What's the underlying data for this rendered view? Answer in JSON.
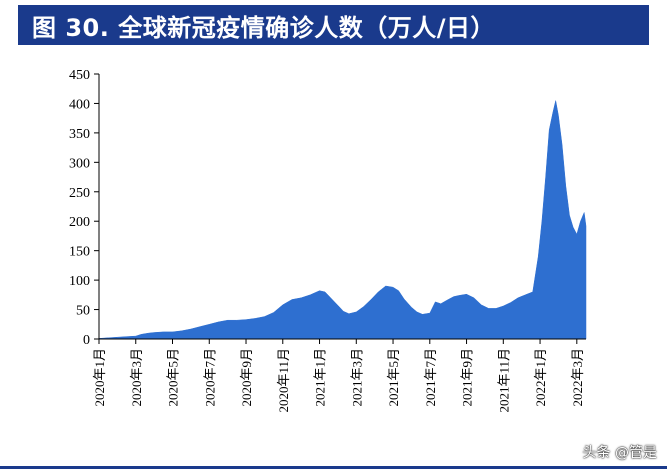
{
  "header": {
    "title": "图 30. 全球新冠疫情确诊人数（万人/日）"
  },
  "watermark": "头条 @管是",
  "colors": {
    "series": "#2e6fd0",
    "header_bg": "#1a3a8c",
    "axis": "#000000"
  },
  "chart_data": {
    "type": "area",
    "title": "全球新冠疫情确诊人数（万人/日）",
    "xlabel": "",
    "ylabel": "",
    "ylim": [
      0,
      450
    ],
    "yticks": [
      0,
      50,
      100,
      150,
      200,
      250,
      300,
      350,
      400,
      450
    ],
    "xlim_month": [
      0,
      26.5
    ],
    "x_tick_labels": [
      {
        "m": 0,
        "label": "2020年1月"
      },
      {
        "m": 2,
        "label": "2020年3月"
      },
      {
        "m": 4,
        "label": "2020年5月"
      },
      {
        "m": 6,
        "label": "2020年7月"
      },
      {
        "m": 8,
        "label": "2020年9月"
      },
      {
        "m": 10,
        "label": "2020年11月"
      },
      {
        "m": 12,
        "label": "2021年1月"
      },
      {
        "m": 14,
        "label": "2021年3月"
      },
      {
        "m": 16,
        "label": "2021年5月"
      },
      {
        "m": 18,
        "label": "2021年7月"
      },
      {
        "m": 20,
        "label": "2021年9月"
      },
      {
        "m": 22,
        "label": "2021年11月"
      },
      {
        "m": 24,
        "label": "2022年1月"
      },
      {
        "m": 26,
        "label": "2022年3月"
      }
    ],
    "series": [
      {
        "values": [
          [
            0.0,
            1
          ],
          [
            0.5,
            2
          ],
          [
            1.0,
            3
          ],
          [
            1.5,
            4
          ],
          [
            2.0,
            5
          ],
          [
            2.3,
            8
          ],
          [
            2.7,
            10
          ],
          [
            3.0,
            11
          ],
          [
            3.5,
            12
          ],
          [
            4.0,
            12
          ],
          [
            4.5,
            14
          ],
          [
            5.0,
            17
          ],
          [
            5.5,
            21
          ],
          [
            6.0,
            25
          ],
          [
            6.5,
            29
          ],
          [
            7.0,
            32
          ],
          [
            7.5,
            32
          ],
          [
            8.0,
            33
          ],
          [
            8.5,
            35
          ],
          [
            9.0,
            38
          ],
          [
            9.5,
            45
          ],
          [
            10.0,
            58
          ],
          [
            10.5,
            67
          ],
          [
            11.0,
            70
          ],
          [
            11.5,
            75
          ],
          [
            12.0,
            82
          ],
          [
            12.3,
            80
          ],
          [
            12.6,
            70
          ],
          [
            13.0,
            57
          ],
          [
            13.3,
            47
          ],
          [
            13.6,
            43
          ],
          [
            14.0,
            46
          ],
          [
            14.4,
            55
          ],
          [
            14.8,
            67
          ],
          [
            15.2,
            80
          ],
          [
            15.6,
            90
          ],
          [
            16.0,
            88
          ],
          [
            16.3,
            82
          ],
          [
            16.6,
            68
          ],
          [
            17.0,
            54
          ],
          [
            17.3,
            46
          ],
          [
            17.6,
            42
          ],
          [
            18.0,
            44
          ],
          [
            18.3,
            63
          ],
          [
            18.6,
            60
          ],
          [
            19.0,
            67
          ],
          [
            19.3,
            72
          ],
          [
            19.6,
            74
          ],
          [
            20.0,
            76
          ],
          [
            20.4,
            70
          ],
          [
            20.8,
            58
          ],
          [
            21.2,
            52
          ],
          [
            21.6,
            52
          ],
          [
            22.0,
            56
          ],
          [
            22.4,
            62
          ],
          [
            22.8,
            70
          ],
          [
            23.2,
            75
          ],
          [
            23.6,
            80
          ],
          [
            23.9,
            140
          ],
          [
            24.1,
            200
          ],
          [
            24.3,
            275
          ],
          [
            24.5,
            355
          ],
          [
            24.7,
            385
          ],
          [
            24.85,
            405
          ],
          [
            25.0,
            380
          ],
          [
            25.2,
            330
          ],
          [
            25.4,
            260
          ],
          [
            25.6,
            210
          ],
          [
            25.8,
            190
          ],
          [
            26.0,
            178
          ],
          [
            26.2,
            200
          ],
          [
            26.4,
            215
          ],
          [
            26.5,
            192
          ]
        ]
      }
    ]
  }
}
